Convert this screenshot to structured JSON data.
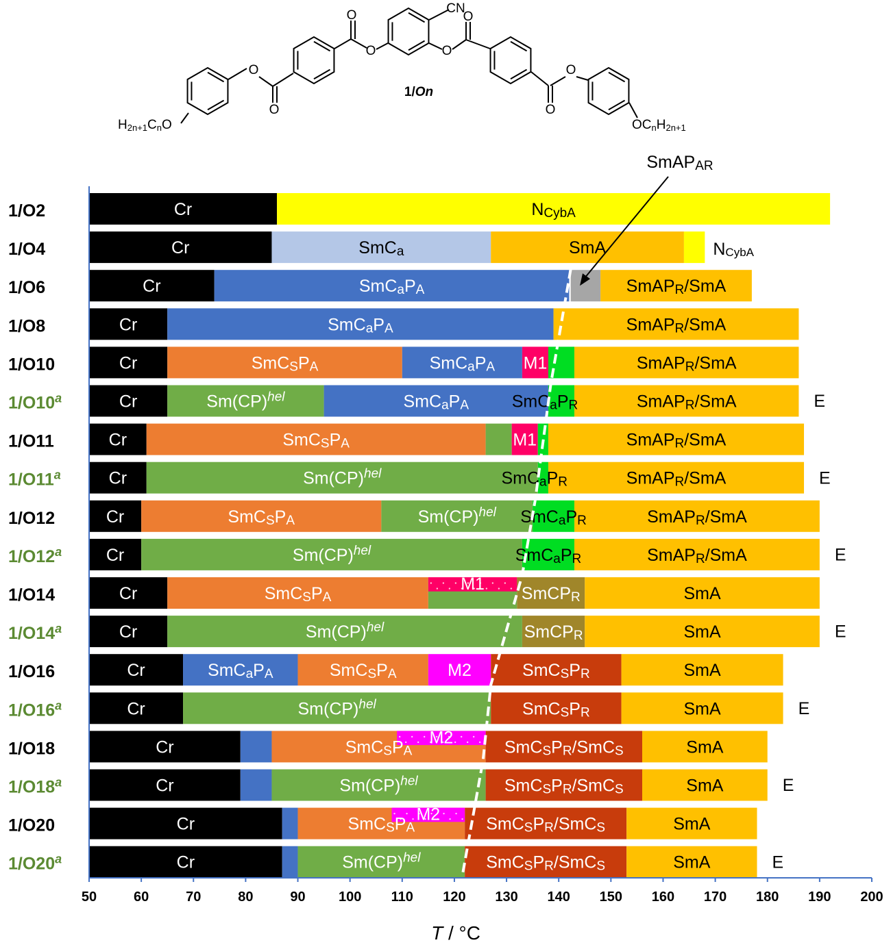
{
  "chart_data": {
    "type": "bar",
    "xlabel": "T / °C",
    "xlim": [
      50,
      200
    ],
    "xticks": [
      50,
      60,
      70,
      80,
      90,
      100,
      110,
      120,
      130,
      140,
      150,
      160,
      170,
      180,
      190,
      200
    ],
    "structure": {
      "label": "1/On",
      "atoms": {
        "cn": "CN",
        "o": "O",
        "left_chain": "H2n+1CnO",
        "right_chain": "OCnH2n+1"
      }
    },
    "colors": {
      "Cr": "#000000",
      "NCybA": "#ffff00",
      "SmCa": "#b4c7e7",
      "SmA": "#ffc000",
      "SmCaPA": "#4472c4",
      "SmAPAR": "#a6a6a6",
      "SmCsPA": "#ed7d31",
      "M1": "#ff0066",
      "SmCaPR": "#00dd22",
      "SmCPhel": "#70ad47",
      "SmCPR": "#a0862a",
      "M2": "#ff00ff",
      "SmCsPR": "#c83c0c"
    },
    "rows": [
      {
        "name": "1/O2",
        "sup": "",
        "green": false,
        "end": "",
        "segments": [
          {
            "from": 50,
            "to": 86,
            "phase": "Cr",
            "label": "Cr"
          },
          {
            "from": 86,
            "to": 192,
            "phase": "NCybA",
            "label": "NCybA"
          }
        ]
      },
      {
        "name": "1/O4",
        "sup": "",
        "green": false,
        "end": "NCybA",
        "segments": [
          {
            "from": 50,
            "to": 85,
            "phase": "Cr",
            "label": "Cr"
          },
          {
            "from": 85,
            "to": 127,
            "phase": "SmCa",
            "label": "SmCa"
          },
          {
            "from": 127,
            "to": 164,
            "phase": "SmA",
            "label": "SmA"
          },
          {
            "from": 164,
            "to": 168,
            "phase": "NCybA",
            "label": ""
          }
        ]
      },
      {
        "name": "1/O6",
        "sup": "",
        "green": false,
        "end": "",
        "segments": [
          {
            "from": 50,
            "to": 74,
            "phase": "Cr",
            "label": "Cr"
          },
          {
            "from": 74,
            "to": 142,
            "phase": "SmCaPA",
            "label": "SmCaPA"
          },
          {
            "from": 142.3,
            "to": 148,
            "phase": "SmAPAR",
            "label": ""
          },
          {
            "from": 148,
            "to": 177,
            "phase": "SmA",
            "label": "SmAPR/SmA"
          }
        ]
      },
      {
        "name": "1/O8",
        "sup": "",
        "green": false,
        "end": "",
        "segments": [
          {
            "from": 50,
            "to": 65,
            "phase": "Cr",
            "label": "Cr"
          },
          {
            "from": 65,
            "to": 139,
            "phase": "SmCaPA",
            "label": "SmCaPA"
          },
          {
            "from": 139,
            "to": 186,
            "phase": "SmA",
            "label": "SmAPR/SmA"
          }
        ]
      },
      {
        "name": "1/O10",
        "sup": "",
        "green": false,
        "end": "",
        "segments": [
          {
            "from": 50,
            "to": 65,
            "phase": "Cr",
            "label": "Cr"
          },
          {
            "from": 65,
            "to": 110,
            "phase": "SmCsPA",
            "label": "SmCsPA"
          },
          {
            "from": 110,
            "to": 133,
            "phase": "SmCaPA",
            "label": "SmCaPA"
          },
          {
            "from": 133,
            "to": 138,
            "phase": "M1",
            "label": "M1"
          },
          {
            "from": 138,
            "to": 143,
            "phase": "SmCaPR",
            "label": ""
          },
          {
            "from": 143,
            "to": 186,
            "phase": "SmA",
            "label": "SmAPR/SmA"
          }
        ]
      },
      {
        "name": "1/O10",
        "sup": "a",
        "green": true,
        "end": "E",
        "segments": [
          {
            "from": 50,
            "to": 65,
            "phase": "Cr",
            "label": "Cr"
          },
          {
            "from": 65,
            "to": 95,
            "phase": "SmCPhel",
            "label": "Sm(CP)hel"
          },
          {
            "from": 95,
            "to": 138,
            "phase": "SmCaPA",
            "label": "SmCaPA"
          },
          {
            "from": 138,
            "to": 143,
            "phase": "SmCaPR",
            "label": "SmCaPR"
          },
          {
            "from": 143,
            "to": 186,
            "phase": "SmA",
            "label": "SmAPR/SmA"
          }
        ]
      },
      {
        "name": "1/O11",
        "sup": "",
        "green": false,
        "end": "",
        "segments": [
          {
            "from": 50,
            "to": 61,
            "phase": "Cr",
            "label": "Cr"
          },
          {
            "from": 61,
            "to": 126,
            "phase": "SmCsPA",
            "label": "SmCsPA"
          },
          {
            "from": 126,
            "to": 131,
            "phase": "SmCPhel",
            "label": ""
          },
          {
            "from": 131,
            "to": 136,
            "phase": "M1",
            "label": "M1"
          },
          {
            "from": 136,
            "to": 138,
            "phase": "SmCaPR",
            "label": ""
          },
          {
            "from": 138,
            "to": 187,
            "phase": "SmA",
            "label": "SmAPR/SmA"
          }
        ]
      },
      {
        "name": "1/O11",
        "sup": "a",
        "green": true,
        "end": "E",
        "segments": [
          {
            "from": 50,
            "to": 61,
            "phase": "Cr",
            "label": "Cr"
          },
          {
            "from": 61,
            "to": 136,
            "phase": "SmCPhel",
            "label": "Sm(CP)hel"
          },
          {
            "from": 136,
            "to": 138,
            "phase": "SmCaPR",
            "label": "SmCaPR"
          },
          {
            "from": 138,
            "to": 187,
            "phase": "SmA",
            "label": "SmAPR/SmA"
          }
        ]
      },
      {
        "name": "1/O12",
        "sup": "",
        "green": false,
        "end": "",
        "segments": [
          {
            "from": 50,
            "to": 60,
            "phase": "Cr",
            "label": "Cr"
          },
          {
            "from": 60,
            "to": 106,
            "phase": "SmCsPA",
            "label": "SmCsPA"
          },
          {
            "from": 106,
            "to": 135,
            "phase": "SmCPhel",
            "label": "Sm(CP)hel"
          },
          {
            "from": 135,
            "to": 143,
            "phase": "SmCaPR",
            "label": "SmCaPR"
          },
          {
            "from": 143,
            "to": 190,
            "phase": "SmA",
            "label": "SmAPR/SmA"
          }
        ]
      },
      {
        "name": "1/O12",
        "sup": "a",
        "green": true,
        "end": "E",
        "segments": [
          {
            "from": 50,
            "to": 60,
            "phase": "Cr",
            "label": "Cr"
          },
          {
            "from": 60,
            "to": 133,
            "phase": "SmCPhel",
            "label": "Sm(CP)hel"
          },
          {
            "from": 133,
            "to": 143,
            "phase": "SmCaPR",
            "label": "SmCaPR"
          },
          {
            "from": 143,
            "to": 190,
            "phase": "SmA",
            "label": "SmAPR/SmA"
          }
        ]
      },
      {
        "name": "1/O14",
        "sup": "",
        "green": false,
        "end": "",
        "segments": [
          {
            "from": 50,
            "to": 65,
            "phase": "Cr",
            "label": "Cr"
          },
          {
            "from": 65,
            "to": 115,
            "phase": "SmCsPA",
            "label": "SmCsPA"
          },
          {
            "from": 115,
            "to": 132,
            "phase": "SmCPhel",
            "label": ""
          },
          {
            "from": 132,
            "to": 145,
            "phase": "SmCPR",
            "label": "SmCPR"
          },
          {
            "from": 145,
            "to": 190,
            "phase": "SmA",
            "label": "SmA"
          }
        ],
        "overlays": [
          {
            "from": 115,
            "to": 132,
            "phase": "M1",
            "label": "M1",
            "part": "top"
          }
        ]
      },
      {
        "name": "1/O14",
        "sup": "a",
        "green": true,
        "end": "E",
        "segments": [
          {
            "from": 50,
            "to": 65,
            "phase": "Cr",
            "label": "Cr"
          },
          {
            "from": 65,
            "to": 133,
            "phase": "SmCPhel",
            "label": "Sm(CP)hel"
          },
          {
            "from": 133,
            "to": 145,
            "phase": "SmCPR",
            "label": "SmCPR"
          },
          {
            "from": 145,
            "to": 190,
            "phase": "SmA",
            "label": "SmA"
          }
        ]
      },
      {
        "name": "1/O16",
        "sup": "",
        "green": false,
        "end": "",
        "segments": [
          {
            "from": 50,
            "to": 68,
            "phase": "Cr",
            "label": "Cr"
          },
          {
            "from": 68,
            "to": 90,
            "phase": "SmCaPA",
            "label": "SmCaPA"
          },
          {
            "from": 90,
            "to": 115,
            "phase": "SmCsPA",
            "label": "SmCsPA"
          },
          {
            "from": 115,
            "to": 127,
            "phase": "M2",
            "label": "M2"
          },
          {
            "from": 127,
            "to": 152,
            "phase": "SmCsPR",
            "label": "SmCsPR"
          },
          {
            "from": 152,
            "to": 183,
            "phase": "SmA",
            "label": "SmA"
          }
        ]
      },
      {
        "name": "1/O16",
        "sup": "a",
        "green": true,
        "end": "E",
        "segments": [
          {
            "from": 50,
            "to": 68,
            "phase": "Cr",
            "label": "Cr"
          },
          {
            "from": 68,
            "to": 127,
            "phase": "SmCPhel",
            "label": "Sm(CP)hel"
          },
          {
            "from": 127,
            "to": 152,
            "phase": "SmCsPR",
            "label": "SmCsPR"
          },
          {
            "from": 152,
            "to": 183,
            "phase": "SmA",
            "label": "SmA"
          }
        ]
      },
      {
        "name": "1/O18",
        "sup": "",
        "green": false,
        "end": "",
        "segments": [
          {
            "from": 50,
            "to": 79,
            "phase": "Cr",
            "label": "Cr"
          },
          {
            "from": 79,
            "to": 85,
            "phase": "SmCaPA",
            "label": ""
          },
          {
            "from": 85,
            "to": 126,
            "phase": "SmCsPA",
            "label": "SmCsPA"
          },
          {
            "from": 126,
            "to": 156,
            "phase": "SmCsPR",
            "label": "SmCsPR/SmCs"
          },
          {
            "from": 156,
            "to": 180,
            "phase": "SmA",
            "label": "SmA"
          }
        ],
        "overlays": [
          {
            "from": 109,
            "to": 126,
            "phase": "M2",
            "label": "M2",
            "part": "top"
          }
        ]
      },
      {
        "name": "1/O18",
        "sup": "a",
        "green": true,
        "end": "E",
        "segments": [
          {
            "from": 50,
            "to": 79,
            "phase": "Cr",
            "label": "Cr"
          },
          {
            "from": 79,
            "to": 85,
            "phase": "SmCaPA",
            "label": ""
          },
          {
            "from": 85,
            "to": 126,
            "phase": "SmCPhel",
            "label": "Sm(CP)hel"
          },
          {
            "from": 126,
            "to": 156,
            "phase": "SmCsPR",
            "label": "SmCsPR/SmCs"
          },
          {
            "from": 156,
            "to": 180,
            "phase": "SmA",
            "label": "SmA"
          }
        ]
      },
      {
        "name": "1/O20",
        "sup": "",
        "green": false,
        "end": "",
        "segments": [
          {
            "from": 50,
            "to": 87,
            "phase": "Cr",
            "label": "Cr"
          },
          {
            "from": 87,
            "to": 90,
            "phase": "SmCaPA",
            "label": ""
          },
          {
            "from": 90,
            "to": 122,
            "phase": "SmCsPA",
            "label": "SmCsPA"
          },
          {
            "from": 122,
            "to": 153,
            "phase": "SmCsPR",
            "label": "SmCsPR/SmCs"
          },
          {
            "from": 153,
            "to": 178,
            "phase": "SmA",
            "label": "SmA"
          }
        ],
        "overlays": [
          {
            "from": 108,
            "to": 122,
            "phase": "M2",
            "label": "M2",
            "part": "top"
          }
        ]
      },
      {
        "name": "1/O20",
        "sup": "a",
        "green": true,
        "end": "E",
        "segments": [
          {
            "from": 50,
            "to": 87,
            "phase": "Cr",
            "label": "Cr"
          },
          {
            "from": 87,
            "to": 90,
            "phase": "SmCaPA",
            "label": ""
          },
          {
            "from": 90,
            "to": 122,
            "phase": "SmCPhel",
            "label": "Sm(CP)hel"
          },
          {
            "from": 122,
            "to": 153,
            "phase": "SmCsPR",
            "label": "SmCsPR/SmCs"
          },
          {
            "from": 153,
            "to": 178,
            "phase": "SmA",
            "label": "SmA"
          }
        ]
      }
    ],
    "annotations": [
      {
        "text": "SmAPAR",
        "points_to_row": "1/O6",
        "points_to_x": 143
      }
    ],
    "boundary_line": {
      "style": "dashed",
      "color": "#ffffff",
      "points": [
        [
          142.3,
          393
        ],
        [
          138.5,
          560
        ],
        [
          135.5,
          730
        ],
        [
          133,
          840
        ],
        [
          127,
          1000
        ],
        [
          125.5,
          1110
        ],
        [
          121.5,
          1280
        ]
      ]
    }
  }
}
